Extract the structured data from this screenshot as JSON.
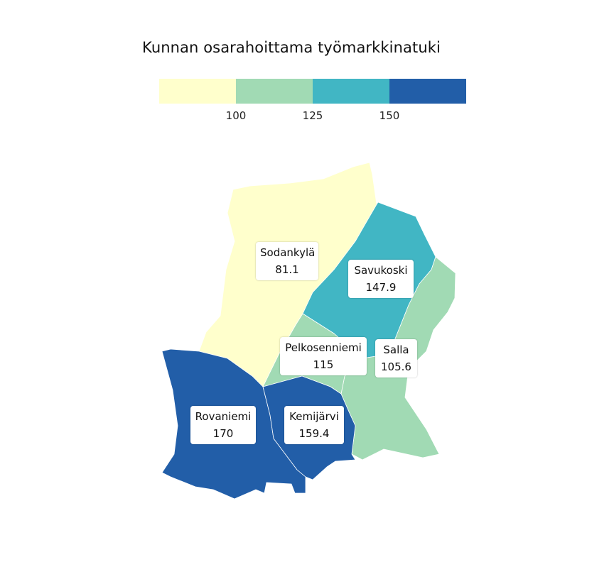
{
  "title": "Kunnan osarahoittama työmarkkinatuki",
  "legend": {
    "colors": [
      "#ffffcc",
      "#a1dab4",
      "#41b6c4",
      "#225ea8"
    ],
    "ticks": [
      "100",
      "125",
      "150"
    ]
  },
  "regions": [
    {
      "id": "sodankyla",
      "name": "Sodankylä",
      "value": "81.1",
      "color": "#ffffcc"
    },
    {
      "id": "savukoski",
      "name": "Savukoski",
      "value": "147.9",
      "color": "#41b6c4"
    },
    {
      "id": "salla",
      "name": "Salla",
      "value": "105.6",
      "color": "#a1dab4"
    },
    {
      "id": "pelkosenniemi",
      "name": "Pelkosenniemi",
      "value": "115",
      "color": "#a1dab4"
    },
    {
      "id": "rovaniemi",
      "name": "Rovaniemi",
      "value": "170",
      "color": "#225ea8"
    },
    {
      "id": "kemijarvi",
      "name": "Kemijärvi",
      "value": "159.4",
      "color": "#225ea8"
    }
  ]
}
